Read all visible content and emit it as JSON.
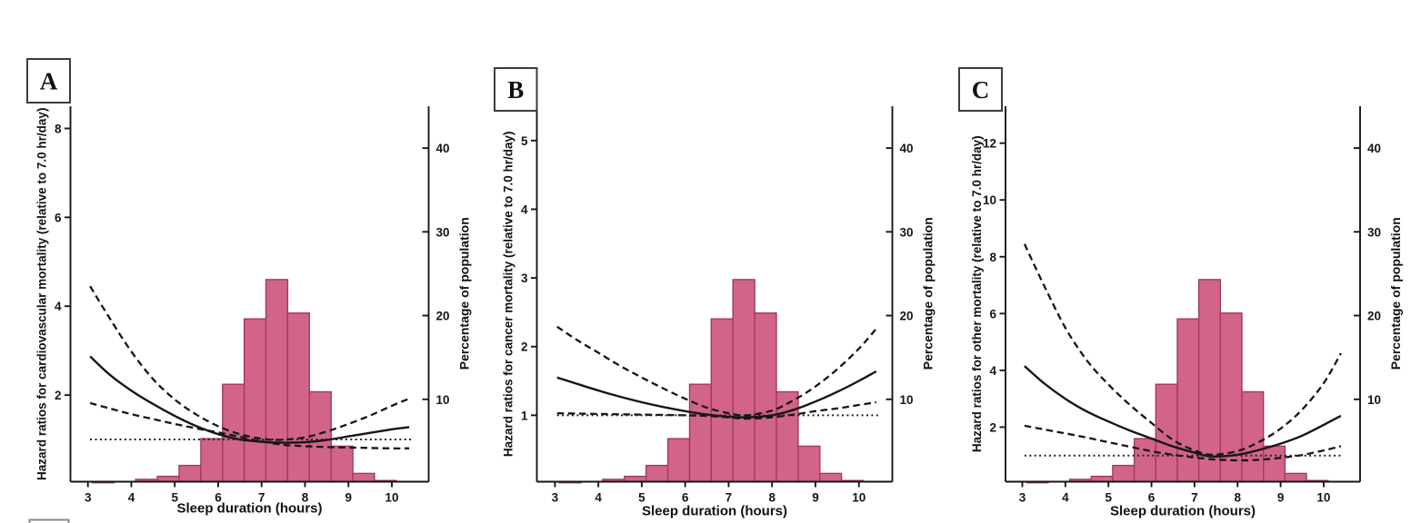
{
  "figure": {
    "background": "#ffffff",
    "line_color": "#161616",
    "dotted_line_color": "#222222",
    "bar_fill": "#d2648c",
    "bar_stroke": "#a23a5a",
    "panel_box_border": "#3c3c3c"
  },
  "chart_data": {
    "type": "multi-panel line+bar",
    "xlabel": "Sleep duration (hours)",
    "x_ticks": [
      3,
      4,
      5,
      6,
      7,
      8,
      9,
      10
    ],
    "xlim": [
      2.6,
      10.8
    ],
    "right_axis": {
      "label": "Percentage of population",
      "ticks": [
        10,
        20,
        30,
        40
      ],
      "range": [
        0,
        45
      ]
    },
    "histogram": {
      "axis": "right",
      "units": "percent of population",
      "bin_edges_hours": [
        3.1,
        3.6,
        4.1,
        4.6,
        5.1,
        5.6,
        6.1,
        6.6,
        7.1,
        7.6,
        8.1,
        8.6,
        9.1,
        9.6,
        10.1
      ],
      "values_percent": [
        0.1,
        0.2,
        0.45,
        0.8,
        2.1,
        5.3,
        11.8,
        19.6,
        24.3,
        20.3,
        10.9,
        4.4,
        1.15,
        0.3
      ]
    },
    "reference_hazard_ratio": 1.0,
    "panels": [
      {
        "label": "A",
        "ylabel": "Hazard ratios for cardiovascular mortality (relative to 7.0 hr/day)",
        "y_ticks": [
          2,
          4,
          6,
          8
        ],
        "ylim": [
          0,
          8.5
        ],
        "series": [
          {
            "name": "hazard ratio",
            "style": "solid",
            "points": [
              [
                3.05,
                2.87
              ],
              [
                3.5,
                2.46
              ],
              [
                4,
                2.1
              ],
              [
                4.5,
                1.8
              ],
              [
                5,
                1.53
              ],
              [
                5.5,
                1.3
              ],
              [
                6,
                1.12
              ],
              [
                6.5,
                1.0
              ],
              [
                7,
                0.95
              ],
              [
                7.4,
                0.93
              ],
              [
                8,
                0.94
              ],
              [
                8.5,
                0.99
              ],
              [
                9,
                1.07
              ],
              [
                9.5,
                1.15
              ],
              [
                10,
                1.23
              ],
              [
                10.4,
                1.28
              ]
            ]
          },
          {
            "name": "upper 95% CI",
            "style": "dashed",
            "points": [
              [
                3.05,
                4.45
              ],
              [
                3.5,
                3.73
              ],
              [
                4,
                2.98
              ],
              [
                4.5,
                2.36
              ],
              [
                5,
                1.9
              ],
              [
                5.5,
                1.56
              ],
              [
                6,
                1.3
              ],
              [
                6.5,
                1.12
              ],
              [
                7,
                1.02
              ],
              [
                7.4,
                0.99
              ],
              [
                8,
                1.05
              ],
              [
                8.5,
                1.18
              ],
              [
                9,
                1.35
              ],
              [
                9.5,
                1.54
              ],
              [
                10,
                1.76
              ],
              [
                10.4,
                1.92
              ]
            ]
          },
          {
            "name": "lower 95% CI",
            "style": "dashed",
            "points": [
              [
                3.05,
                1.82
              ],
              [
                3.5,
                1.7
              ],
              [
                4,
                1.57
              ],
              [
                4.5,
                1.46
              ],
              [
                5,
                1.35
              ],
              [
                5.5,
                1.25
              ],
              [
                6,
                1.16
              ],
              [
                6.5,
                1.06
              ],
              [
                7,
                0.96
              ],
              [
                7.5,
                0.88
              ],
              [
                8,
                0.85
              ],
              [
                8.5,
                0.83
              ],
              [
                9,
                0.82
              ],
              [
                9.5,
                0.81
              ],
              [
                10,
                0.8
              ],
              [
                10.4,
                0.8
              ]
            ]
          },
          {
            "name": "reference (HR = 1)",
            "style": "dotted",
            "y": 1.0
          }
        ]
      },
      {
        "label": "B",
        "ylabel": "Hazard ratios for cancer mortality (relative to 7.0 hr/day)",
        "y_ticks": [
          1,
          2,
          3,
          4,
          5
        ],
        "ylim": [
          0,
          5.5
        ],
        "series": [
          {
            "name": "hazard ratio",
            "style": "solid",
            "points": [
              [
                3.05,
                1.55
              ],
              [
                3.5,
                1.46
              ],
              [
                4,
                1.36
              ],
              [
                4.5,
                1.27
              ],
              [
                5,
                1.19
              ],
              [
                5.5,
                1.12
              ],
              [
                6,
                1.06
              ],
              [
                6.5,
                1.01
              ],
              [
                7,
                0.98
              ],
              [
                7.4,
                0.97
              ],
              [
                8,
                1.0
              ],
              [
                8.5,
                1.08
              ],
              [
                9,
                1.2
              ],
              [
                9.5,
                1.34
              ],
              [
                10,
                1.5
              ],
              [
                10.4,
                1.64
              ]
            ]
          },
          {
            "name": "upper 95% CI",
            "style": "dashed",
            "points": [
              [
                3.05,
                2.29
              ],
              [
                3.5,
                2.1
              ],
              [
                4,
                1.91
              ],
              [
                4.5,
                1.72
              ],
              [
                5,
                1.55
              ],
              [
                5.5,
                1.39
              ],
              [
                6,
                1.24
              ],
              [
                6.5,
                1.11
              ],
              [
                7,
                1.03
              ],
              [
                7.4,
                1.0
              ],
              [
                8,
                1.07
              ],
              [
                8.5,
                1.22
              ],
              [
                9,
                1.42
              ],
              [
                9.5,
                1.67
              ],
              [
                10,
                1.97
              ],
              [
                10.4,
                2.26
              ]
            ]
          },
          {
            "name": "lower 95% CI",
            "style": "dashed",
            "points": [
              [
                3.05,
                1.03
              ],
              [
                4,
                1.02
              ],
              [
                5,
                1.01
              ],
              [
                6,
                1.0
              ],
              [
                6.5,
                0.99
              ],
              [
                7,
                0.97
              ],
              [
                7.4,
                0.95
              ],
              [
                8,
                0.97
              ],
              [
                8.5,
                1.01
              ],
              [
                9,
                1.06
              ],
              [
                9.5,
                1.1
              ],
              [
                10,
                1.15
              ],
              [
                10.4,
                1.19
              ]
            ]
          },
          {
            "name": "reference (HR = 1)",
            "style": "dotted",
            "y": 1.0
          }
        ]
      },
      {
        "label": "C",
        "ylabel": "Hazard ratios for other mortality (relative to 7.0 hr/day)",
        "y_ticks": [
          2,
          4,
          6,
          8,
          10,
          12
        ],
        "ylim": [
          0,
          13.3
        ],
        "series": [
          {
            "name": "hazard ratio",
            "style": "solid",
            "points": [
              [
                3.05,
                4.15
              ],
              [
                3.5,
                3.55
              ],
              [
                4,
                3.0
              ],
              [
                4.5,
                2.55
              ],
              [
                5,
                2.2
              ],
              [
                5.5,
                1.88
              ],
              [
                6,
                1.6
              ],
              [
                6.5,
                1.32
              ],
              [
                7,
                1.1
              ],
              [
                7.4,
                0.97
              ],
              [
                8,
                1.03
              ],
              [
                8.5,
                1.2
              ],
              [
                9,
                1.42
              ],
              [
                9.5,
                1.7
              ],
              [
                10,
                2.08
              ],
              [
                10.4,
                2.4
              ]
            ]
          },
          {
            "name": "upper 95% CI",
            "style": "dashed",
            "points": [
              [
                3.05,
                8.45
              ],
              [
                3.5,
                7.0
              ],
              [
                4,
                5.5
              ],
              [
                4.5,
                4.35
              ],
              [
                5,
                3.5
              ],
              [
                5.5,
                2.78
              ],
              [
                6,
                2.15
              ],
              [
                6.5,
                1.55
              ],
              [
                7,
                1.18
              ],
              [
                7.4,
                1.03
              ],
              [
                8,
                1.16
              ],
              [
                8.5,
                1.48
              ],
              [
                9,
                1.95
              ],
              [
                9.5,
                2.62
              ],
              [
                10,
                3.55
              ],
              [
                10.4,
                4.6
              ]
            ]
          },
          {
            "name": "lower 95% CI",
            "style": "dashed",
            "points": [
              [
                3.05,
                2.05
              ],
              [
                3.5,
                1.92
              ],
              [
                4,
                1.78
              ],
              [
                4.5,
                1.63
              ],
              [
                5,
                1.47
              ],
              [
                5.5,
                1.31
              ],
              [
                6,
                1.15
              ],
              [
                6.5,
                1.03
              ],
              [
                7,
                0.93
              ],
              [
                7.5,
                0.86
              ],
              [
                8,
                0.83
              ],
              [
                8.5,
                0.85
              ],
              [
                9,
                0.92
              ],
              [
                9.5,
                1.02
              ],
              [
                10,
                1.18
              ],
              [
                10.4,
                1.33
              ]
            ]
          },
          {
            "name": "reference (HR = 1)",
            "style": "dotted",
            "y": 1.0
          }
        ]
      }
    ]
  }
}
